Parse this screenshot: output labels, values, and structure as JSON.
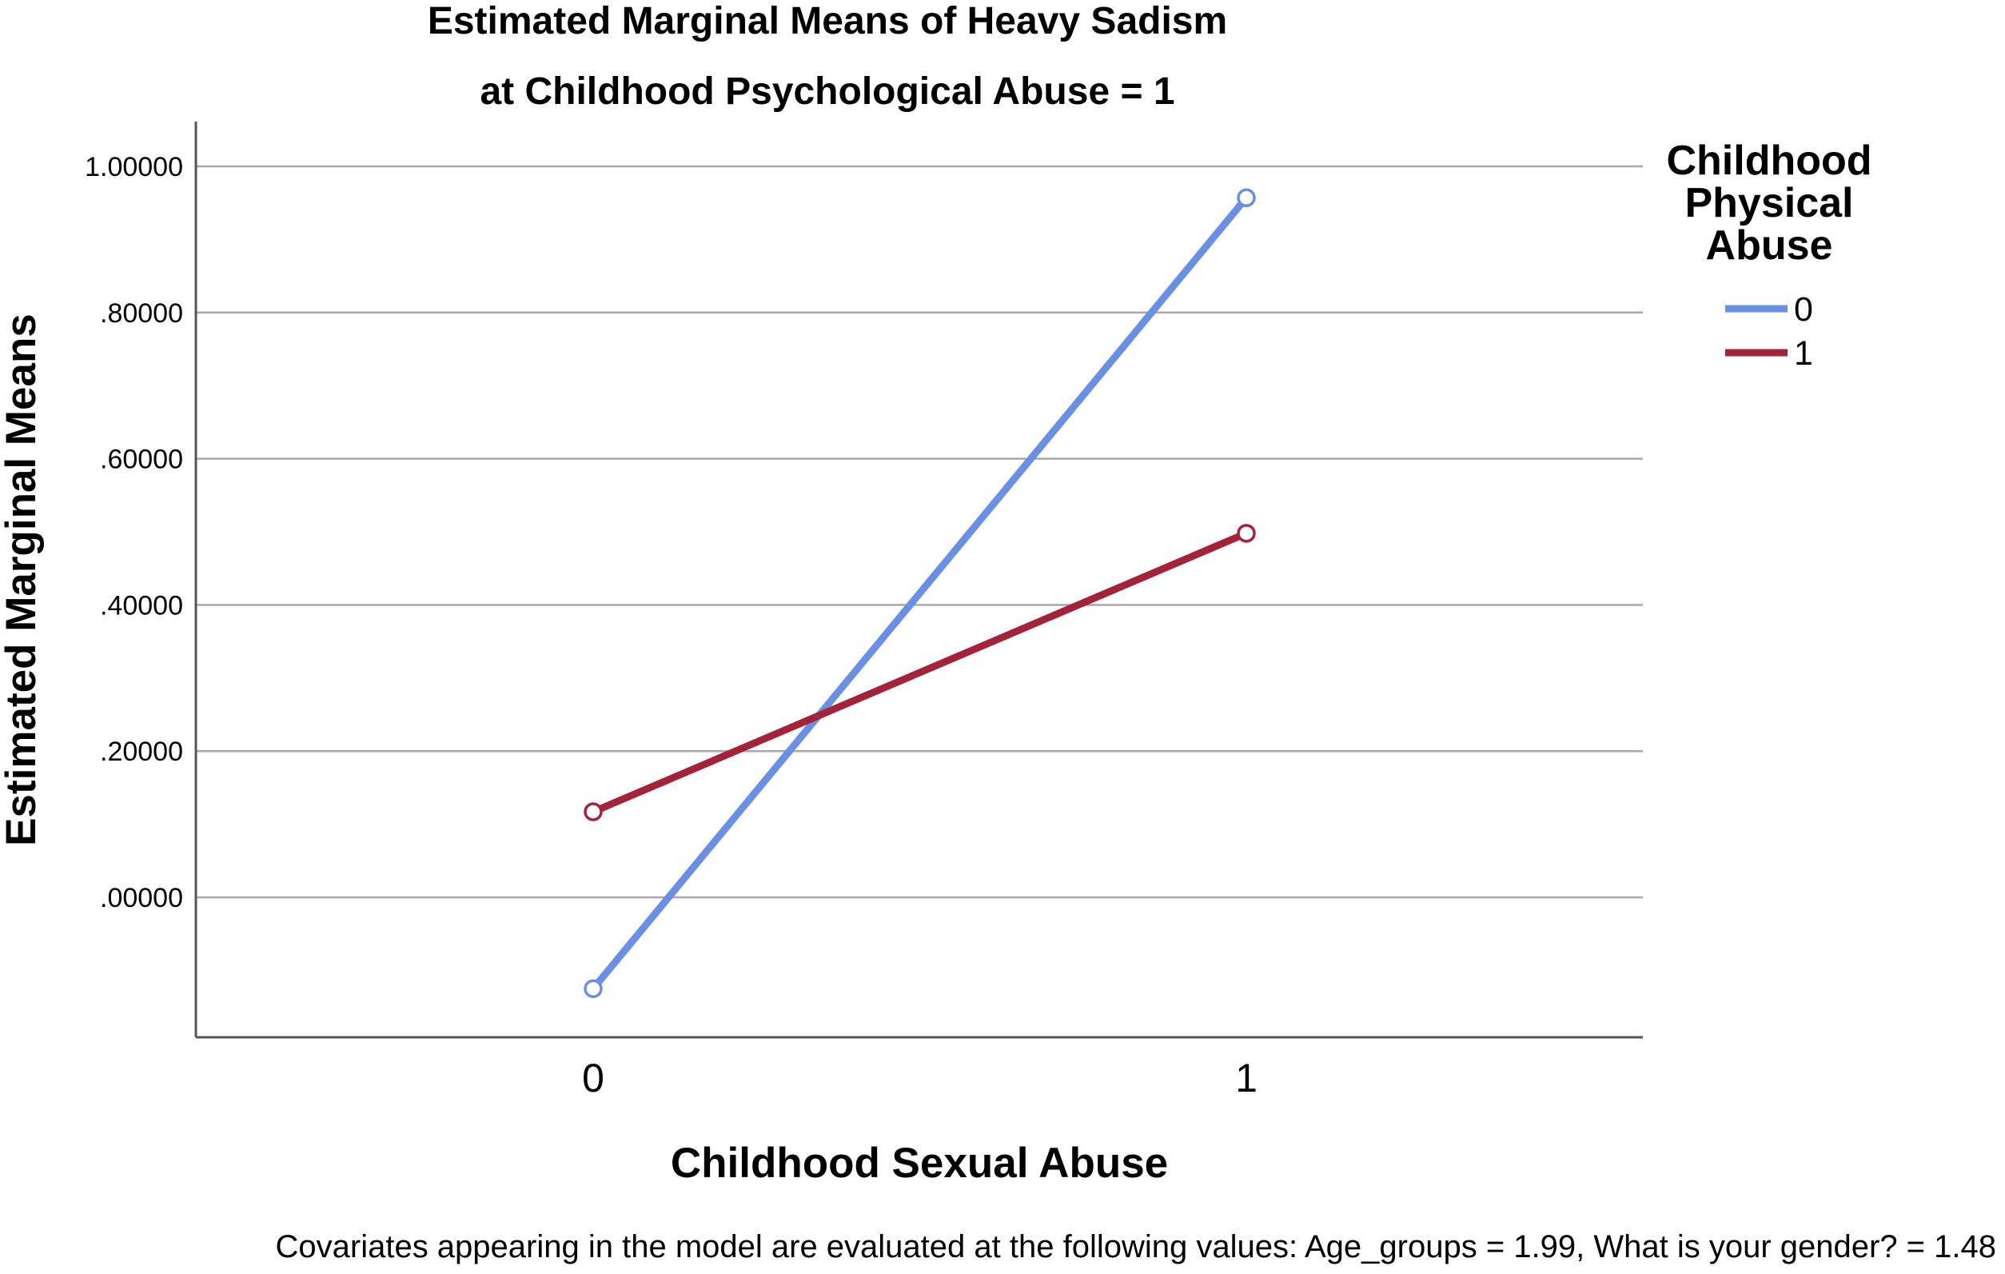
{
  "chart_data": {
    "type": "line",
    "title": [
      "Estimated Marginal Means of Heavy Sadism",
      "at Childhood Psychological Abuse = 1"
    ],
    "xlabel": "Childhood Sexual Abuse",
    "ylabel": "Estimated Marginal Means",
    "categories": [
      "0",
      "1"
    ],
    "ylim": [
      -0.19,
      1.065
    ],
    "yticks": [
      0.0,
      0.2,
      0.4,
      0.6,
      0.8,
      1.0
    ],
    "ytick_labels": [
      ".00000",
      ".20000",
      ".40000",
      ".60000",
      ".80000",
      "1.00000"
    ],
    "grid": true,
    "legend": {
      "title": [
        "Childhood",
        "Physical",
        "Abuse"
      ],
      "placement": "right"
    },
    "series": [
      {
        "name": "0",
        "values": [
          -0.125,
          0.957
        ],
        "color": "#6a8fe3"
      },
      {
        "name": "1",
        "values": [
          0.117,
          0.498
        ],
        "color": "#a3233a"
      }
    ],
    "footnote": "Covariates appearing in the model are evaluated at the following values: Age_groups = 1.99, What is your gender? = 1.48"
  }
}
